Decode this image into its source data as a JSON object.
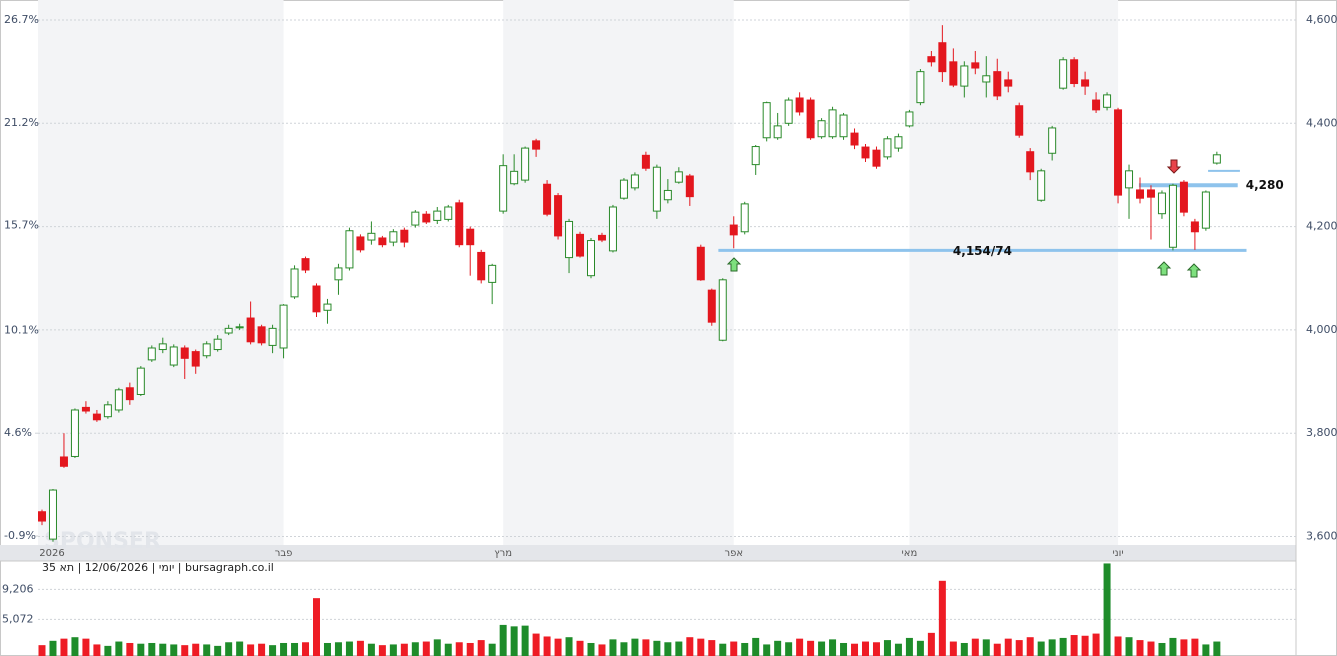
{
  "chart_data": {
    "type": "candlestick",
    "info": "יומי | 12/06/2026 | תא 35 | bursagraph.co.il",
    "watermark": "SPONSER",
    "categories": [
      "2026",
      null,
      null,
      null,
      null,
      null,
      null,
      null,
      null,
      null,
      null,
      null,
      null,
      null,
      null,
      null,
      null,
      null,
      null,
      null,
      null,
      null,
      "פבר",
      null,
      null,
      null,
      null,
      null,
      null,
      null,
      null,
      null,
      null,
      null,
      null,
      null,
      null,
      null,
      null,
      null,
      null,
      null,
      "מרץ",
      null,
      null,
      null,
      null,
      null,
      null,
      null,
      null,
      null,
      null,
      null,
      null,
      null,
      null,
      null,
      null,
      null,
      null,
      null,
      null,
      "אפר",
      null,
      null,
      null,
      null,
      null,
      null,
      null,
      null,
      null,
      null,
      null,
      null,
      null,
      null,
      null,
      "מאי",
      null,
      null,
      null,
      null,
      null,
      null,
      null,
      null,
      null,
      null,
      null,
      null,
      null,
      null,
      null,
      null,
      null,
      null,
      "יוני",
      null,
      null,
      null,
      null,
      null,
      null,
      null,
      null,
      null
    ],
    "open": [
      3648,
      3595,
      3754,
      3755,
      3850,
      3837,
      3832,
      3845,
      3888,
      3875,
      3942,
      3962,
      3932,
      3965,
      3958,
      3950,
      3962,
      3994,
      4004,
      4023,
      4006,
      3970,
      3965,
      4064,
      4138,
      4085,
      4038,
      4097,
      4120,
      4180,
      4174,
      4178,
      4170,
      4193,
      4203,
      4224,
      4212,
      4214,
      4246,
      4195,
      4150,
      4092,
      4230,
      4283,
      4290,
      4366,
      4282,
      4260,
      4140,
      4185,
      4105,
      4183,
      4153,
      4255,
      4275,
      4338,
      4230,
      4252,
      4286,
      4298,
      4160,
      4077,
      3980,
      4203,
      4190,
      4320,
      4372,
      4372,
      4400,
      4449,
      4445,
      4374,
      4374,
      4374,
      4381,
      4354,
      4348,
      4335,
      4352,
      4395,
      4440,
      4529,
      4556,
      4519,
      4472,
      4517,
      4480,
      4500,
      4484,
      4434,
      4345,
      4251,
      4342,
      4468,
      4523,
      4484,
      4445,
      4431,
      4426,
      4275,
      4271,
      4271,
      4225,
      4160,
      4286,
      4209,
      4197,
      4323
    ],
    "high": [
      3652,
      3692,
      3800,
      3848,
      3862,
      3845,
      3862,
      3888,
      3898,
      3930,
      3970,
      3985,
      3972,
      3970,
      3962,
      3978,
      3990,
      4010,
      4012,
      4055,
      4010,
      4010,
      4050,
      4125,
      4142,
      4090,
      4060,
      4128,
      4198,
      4185,
      4210,
      4182,
      4195,
      4198,
      4232,
      4230,
      4238,
      4242,
      4252,
      4200,
      4155,
      4128,
      4340,
      4340,
      4355,
      4370,
      4290,
      4265,
      4215,
      4190,
      4178,
      4188,
      4242,
      4294,
      4305,
      4345,
      4320,
      4292,
      4315,
      4302,
      4165,
      4080,
      4100,
      4220,
      4248,
      4358,
      4442,
      4420,
      4450,
      4460,
      4450,
      4410,
      4432,
      4420,
      4390,
      4360,
      4355,
      4375,
      4380,
      4426,
      4505,
      4540,
      4590,
      4545,
      4520,
      4540,
      4530,
      4525,
      4500,
      4440,
      4352,
      4312,
      4395,
      4528,
      4528,
      4500,
      4460,
      4460,
      4430,
      4320,
      4295,
      4280,
      4270,
      4283,
      4290,
      4215,
      4270,
      4345
    ],
    "low": [
      3622,
      3590,
      3733,
      3752,
      3838,
      3822,
      3828,
      3840,
      3855,
      3872,
      3938,
      3955,
      3928,
      3905,
      3915,
      3945,
      3958,
      3990,
      4000,
      3972,
      3970,
      3955,
      3945,
      4060,
      4110,
      4025,
      4012,
      4068,
      4115,
      4150,
      4165,
      4160,
      4162,
      4160,
      4198,
      4205,
      4205,
      4210,
      4160,
      4105,
      4090,
      4050,
      4225,
      4280,
      4285,
      4335,
      4220,
      4175,
      4110,
      4140,
      4100,
      4170,
      4150,
      4252,
      4270,
      4308,
      4215,
      4245,
      4283,
      4240,
      4095,
      4008,
      3978,
      4158,
      4185,
      4300,
      4365,
      4368,
      4395,
      4415,
      4368,
      4370,
      4370,
      4368,
      4350,
      4325,
      4312,
      4330,
      4345,
      4392,
      4435,
      4510,
      4480,
      4470,
      4450,
      4495,
      4450,
      4445,
      4460,
      4372,
      4290,
      4248,
      4328,
      4465,
      4470,
      4455,
      4420,
      4425,
      4245,
      4215,
      4245,
      4175,
      4215,
      4154,
      4220,
      4155,
      4192,
      4320
    ],
    "close": [
      3630,
      3690,
      3736,
      3845,
      3843,
      3826,
      3855,
      3884,
      3865,
      3926,
      3965,
      3973,
      3967,
      3945,
      3930,
      3973,
      3982,
      4003,
      4006,
      3977,
      3975,
      4003,
      4048,
      4118,
      4116,
      4035,
      4050,
      4120,
      4192,
      4155,
      4187,
      4165,
      4190,
      4170,
      4228,
      4209,
      4230,
      4238,
      4165,
      4165,
      4097,
      4125,
      4318,
      4307,
      4352,
      4350,
      4224,
      4182,
      4210,
      4143,
      4173,
      4174,
      4238,
      4290,
      4300,
      4313,
      4315,
      4270,
      4306,
      4258,
      4097,
      4015,
      4097,
      4184,
      4244,
      4355,
      4440,
      4395,
      4445,
      4422,
      4372,
      4405,
      4426,
      4416,
      4358,
      4333,
      4317,
      4370,
      4374,
      4422,
      4500,
      4519,
      4500,
      4474,
      4511,
      4507,
      4492,
      4453,
      4472,
      4377,
      4306,
      4308,
      4391,
      4523,
      4477,
      4472,
      4426,
      4455,
      4261,
      4308,
      4255,
      4257,
      4265,
      4280,
      4228,
      4190,
      4267,
      4339
    ],
    "volume": [
      1500,
      2100,
      2400,
      2600,
      2400,
      1600,
      1400,
      2000,
      1800,
      1700,
      1800,
      1700,
      1600,
      1500,
      1700,
      1600,
      1400,
      1900,
      2000,
      1600,
      1700,
      1500,
      1800,
      1800,
      1900,
      8000,
      1800,
      1900,
      2000,
      2100,
      1700,
      1500,
      1600,
      1700,
      1900,
      2000,
      2300,
      1700,
      1900,
      1800,
      2200,
      1700,
      4300,
      4100,
      4200,
      3100,
      2700,
      2400,
      2600,
      2100,
      1800,
      1600,
      2300,
      1900,
      2400,
      2300,
      2100,
      1900,
      2000,
      2600,
      2400,
      2200,
      1700,
      2000,
      1800,
      2500,
      1600,
      2100,
      1900,
      2400,
      2100,
      2000,
      2300,
      1800,
      1700,
      2000,
      1900,
      2200,
      1700,
      2500,
      2100,
      3200,
      10400,
      2000,
      1800,
      2400,
      2300,
      1700,
      2400,
      2200,
      2600,
      2000,
      2300,
      2500,
      2900,
      2800,
      3100,
      12800,
      2700,
      2600,
      2200,
      2000,
      1800,
      2500,
      2300,
      2400,
      1600,
      2000
    ],
    "up_color": "#2a8a2a",
    "down_color": "#e3171e",
    "ylim": [
      3583.6,
      4638.7
    ],
    "yticks": [
      {
        "value": 3600,
        "label": "3,600"
      },
      {
        "value": 3800,
        "label": "3,800"
      },
      {
        "value": 4000,
        "label": "4,000"
      },
      {
        "value": 4200,
        "label": "4,200"
      },
      {
        "value": 4400,
        "label": "4,400"
      },
      {
        "value": 4600,
        "label": "4,600"
      }
    ],
    "y2lim": [
      -1.38,
      27.77
    ],
    "y2ticks": [
      {
        "value": -0.9,
        "label": "-0.9%"
      },
      {
        "value": 4.6,
        "label": "4.6%"
      },
      {
        "value": 10.1,
        "label": "10.1%"
      },
      {
        "value": 15.7,
        "label": "15.7%"
      },
      {
        "value": 21.2,
        "label": "21.2%"
      },
      {
        "value": 26.7,
        "label": "26.7%"
      }
    ],
    "volume_ylim": [
      0,
      13000
    ],
    "volume_yticks": [
      {
        "value": 5072,
        "label": "5,072"
      },
      {
        "value": 9206,
        "label": "9,206"
      }
    ],
    "grid": true,
    "levels": [
      {
        "value": 4280,
        "label": "4,280"
      },
      {
        "value": 4154,
        "label": "4,154/74"
      },
      {
        "value": 4308
      }
    ],
    "level_color": "#8ec3ec"
  }
}
